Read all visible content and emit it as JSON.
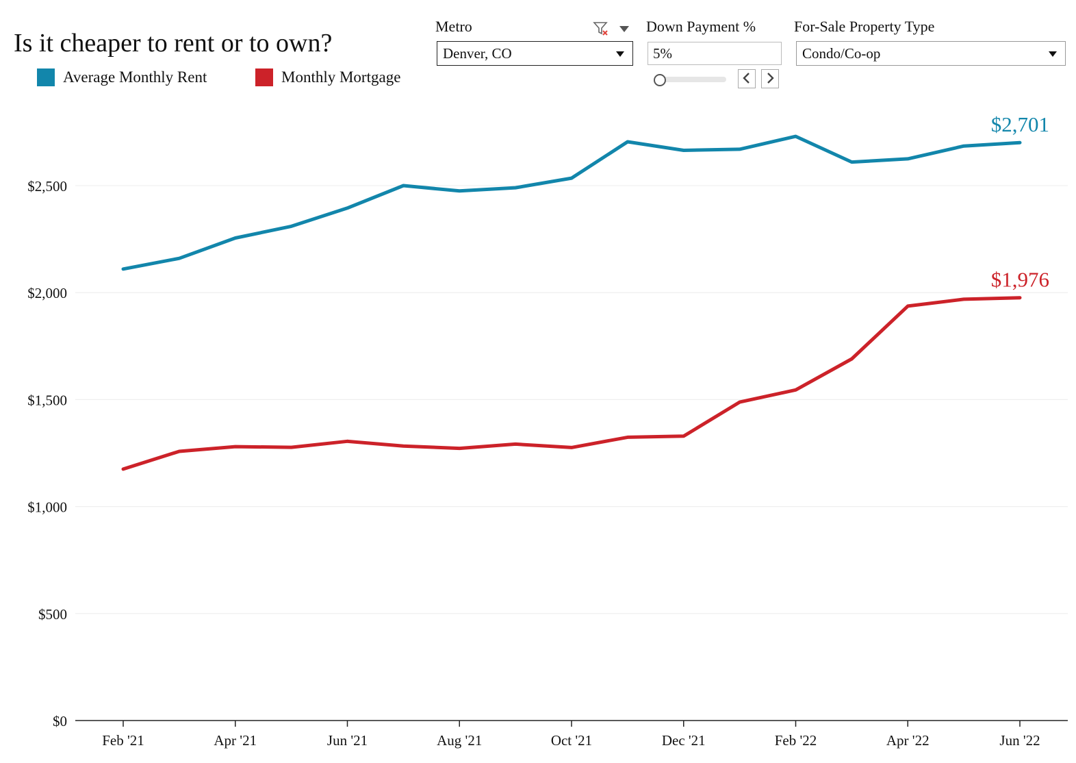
{
  "title": "Is it cheaper to rent or to own?",
  "legend": [
    {
      "label": "Average Monthly Rent",
      "color": "#1286ab"
    },
    {
      "label": "Monthly Mortgage",
      "color": "#cc2229"
    }
  ],
  "controls": {
    "metro": {
      "label": "Metro",
      "value": "Denver, CO"
    },
    "down_payment": {
      "label": "Down Payment %",
      "value": "5%",
      "slider_fraction": 0
    },
    "property_type": {
      "label": "For-Sale Property Type",
      "value": "Condo/Co-op"
    }
  },
  "icons": {
    "clear_filter": "filter-clear-icon",
    "dropdown": "chevron-down-icon",
    "prev": "chevron-left-icon",
    "next": "chevron-right-icon"
  },
  "chart_data": {
    "type": "line",
    "x": [
      "Feb '21",
      "Mar '21",
      "Apr '21",
      "May '21",
      "Jun '21",
      "Jul '21",
      "Aug '21",
      "Sep '21",
      "Oct '21",
      "Nov '21",
      "Dec '21",
      "Jan '22",
      "Feb '22",
      "Mar '22",
      "Apr '22",
      "May '22",
      "Jun '22"
    ],
    "x_tick_labels": [
      "Feb '21",
      "Apr '21",
      "Jun '21",
      "Aug '21",
      "Oct '21",
      "Dec '21",
      "Feb '22",
      "Apr '22",
      "Jun '22"
    ],
    "series": [
      {
        "name": "Average Monthly Rent",
        "color": "#1286ab",
        "values": [
          2110,
          2160,
          2255,
          2310,
          2395,
          2500,
          2475,
          2490,
          2535,
          2705,
          2665,
          2670,
          2730,
          2610,
          2625,
          2685,
          2701
        ],
        "end_label": "$2,701"
      },
      {
        "name": "Monthly Mortgage",
        "color": "#cc2229",
        "values": [
          1175,
          1258,
          1280,
          1277,
          1305,
          1283,
          1272,
          1292,
          1276,
          1324,
          1329,
          1488,
          1545,
          1690,
          1937,
          1969,
          1976
        ],
        "end_label": "$1,976"
      }
    ],
    "y_ticks": [
      0,
      500,
      1000,
      1500,
      2000,
      2500
    ],
    "y_tick_labels": [
      "$0",
      "$500",
      "$1,000",
      "$1,500",
      "$2,000",
      "$2,500"
    ],
    "ylim": [
      0,
      2850
    ],
    "grid": true,
    "legend_position": "top-left"
  }
}
